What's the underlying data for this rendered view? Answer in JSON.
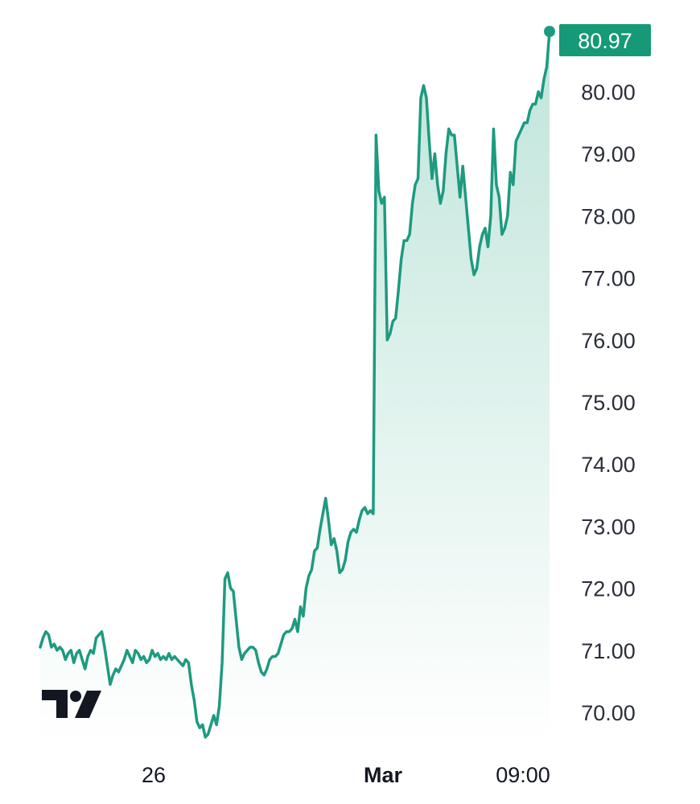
{
  "colors": {
    "line": "#1e9a80",
    "area_top": "#bfe5da",
    "area_bottom": "#ffffff",
    "label_bg": "#159977",
    "label_text": "#ffffff",
    "axis_text": "#2a2e39"
  },
  "logo": {
    "icon": "tradingview-logo-icon",
    "text": "TV"
  },
  "chart_data": {
    "type": "area",
    "title": "",
    "xlabel": "",
    "ylabel": "",
    "ylim": [
      69.6,
      81.2
    ],
    "grid": false,
    "last_value_label": "80.97",
    "y_ticks": [
      {
        "value": 80,
        "label": "80.00"
      },
      {
        "value": 79,
        "label": "79.00"
      },
      {
        "value": 78,
        "label": "78.00"
      },
      {
        "value": 77,
        "label": "77.00"
      },
      {
        "value": 76,
        "label": "76.00"
      },
      {
        "value": 75,
        "label": "75.00"
      },
      {
        "value": 74,
        "label": "74.00"
      },
      {
        "value": 73,
        "label": "73.00"
      },
      {
        "value": 72,
        "label": "72.00"
      },
      {
        "value": 71,
        "label": "71.00"
      },
      {
        "value": 70,
        "label": "70.00"
      }
    ],
    "x_ticks": [
      {
        "index": 47,
        "label": "26",
        "bold": false
      },
      {
        "index": 142,
        "label": "Mar",
        "bold": true
      },
      {
        "index": 200,
        "label": "09:00",
        "bold": false
      }
    ],
    "x_count": 212,
    "values": [
      71.05,
      71.2,
      71.3,
      71.25,
      71.05,
      71.1,
      71.0,
      71.05,
      71.0,
      70.85,
      70.95,
      71.0,
      70.8,
      70.95,
      71.0,
      70.85,
      70.7,
      70.9,
      71.0,
      70.95,
      71.2,
      71.25,
      71.3,
      71.05,
      70.75,
      70.45,
      70.6,
      70.7,
      70.65,
      70.75,
      70.85,
      71.0,
      70.9,
      70.8,
      71.0,
      70.95,
      70.85,
      70.9,
      70.8,
      70.85,
      71.0,
      70.9,
      70.95,
      70.85,
      70.9,
      70.85,
      70.95,
      70.85,
      70.9,
      70.85,
      70.8,
      70.75,
      70.85,
      70.8,
      70.45,
      70.2,
      69.85,
      69.75,
      69.8,
      69.6,
      69.65,
      69.8,
      69.95,
      69.8,
      70.1,
      70.8,
      72.15,
      72.25,
      72.0,
      71.95,
      71.5,
      71.05,
      70.85,
      70.95,
      71.0,
      71.05,
      71.05,
      71.0,
      70.8,
      70.65,
      70.6,
      70.7,
      70.85,
      70.9,
      70.9,
      70.95,
      71.1,
      71.25,
      71.3,
      71.3,
      71.35,
      71.5,
      71.3,
      71.7,
      71.55,
      72.0,
      72.2,
      72.3,
      72.6,
      72.65,
      72.95,
      73.2,
      73.45,
      73.1,
      72.7,
      72.8,
      72.6,
      72.25,
      72.3,
      72.45,
      72.75,
      72.9,
      72.95,
      72.9,
      73.1,
      73.25,
      73.3,
      73.2,
      73.25,
      73.2,
      79.3,
      78.4,
      78.2,
      78.3,
      76.0,
      76.1,
      76.3,
      76.35,
      76.8,
      77.3,
      77.6,
      77.6,
      77.7,
      78.2,
      78.5,
      78.6,
      79.9,
      80.1,
      79.9,
      79.2,
      78.6,
      79.0,
      78.5,
      78.2,
      78.4,
      79.0,
      79.4,
      79.3,
      79.3,
      78.8,
      78.3,
      78.8,
      78.3,
      77.8,
      77.3,
      77.05,
      77.15,
      77.5,
      77.7,
      77.8,
      77.5,
      78.0,
      79.4,
      78.5,
      78.3,
      77.7,
      77.8,
      78.0,
      78.7,
      78.5,
      79.2,
      79.3,
      79.4,
      79.5,
      79.5,
      79.7,
      79.8,
      79.8,
      80.0,
      79.9,
      80.2,
      80.4,
      80.97
    ]
  }
}
